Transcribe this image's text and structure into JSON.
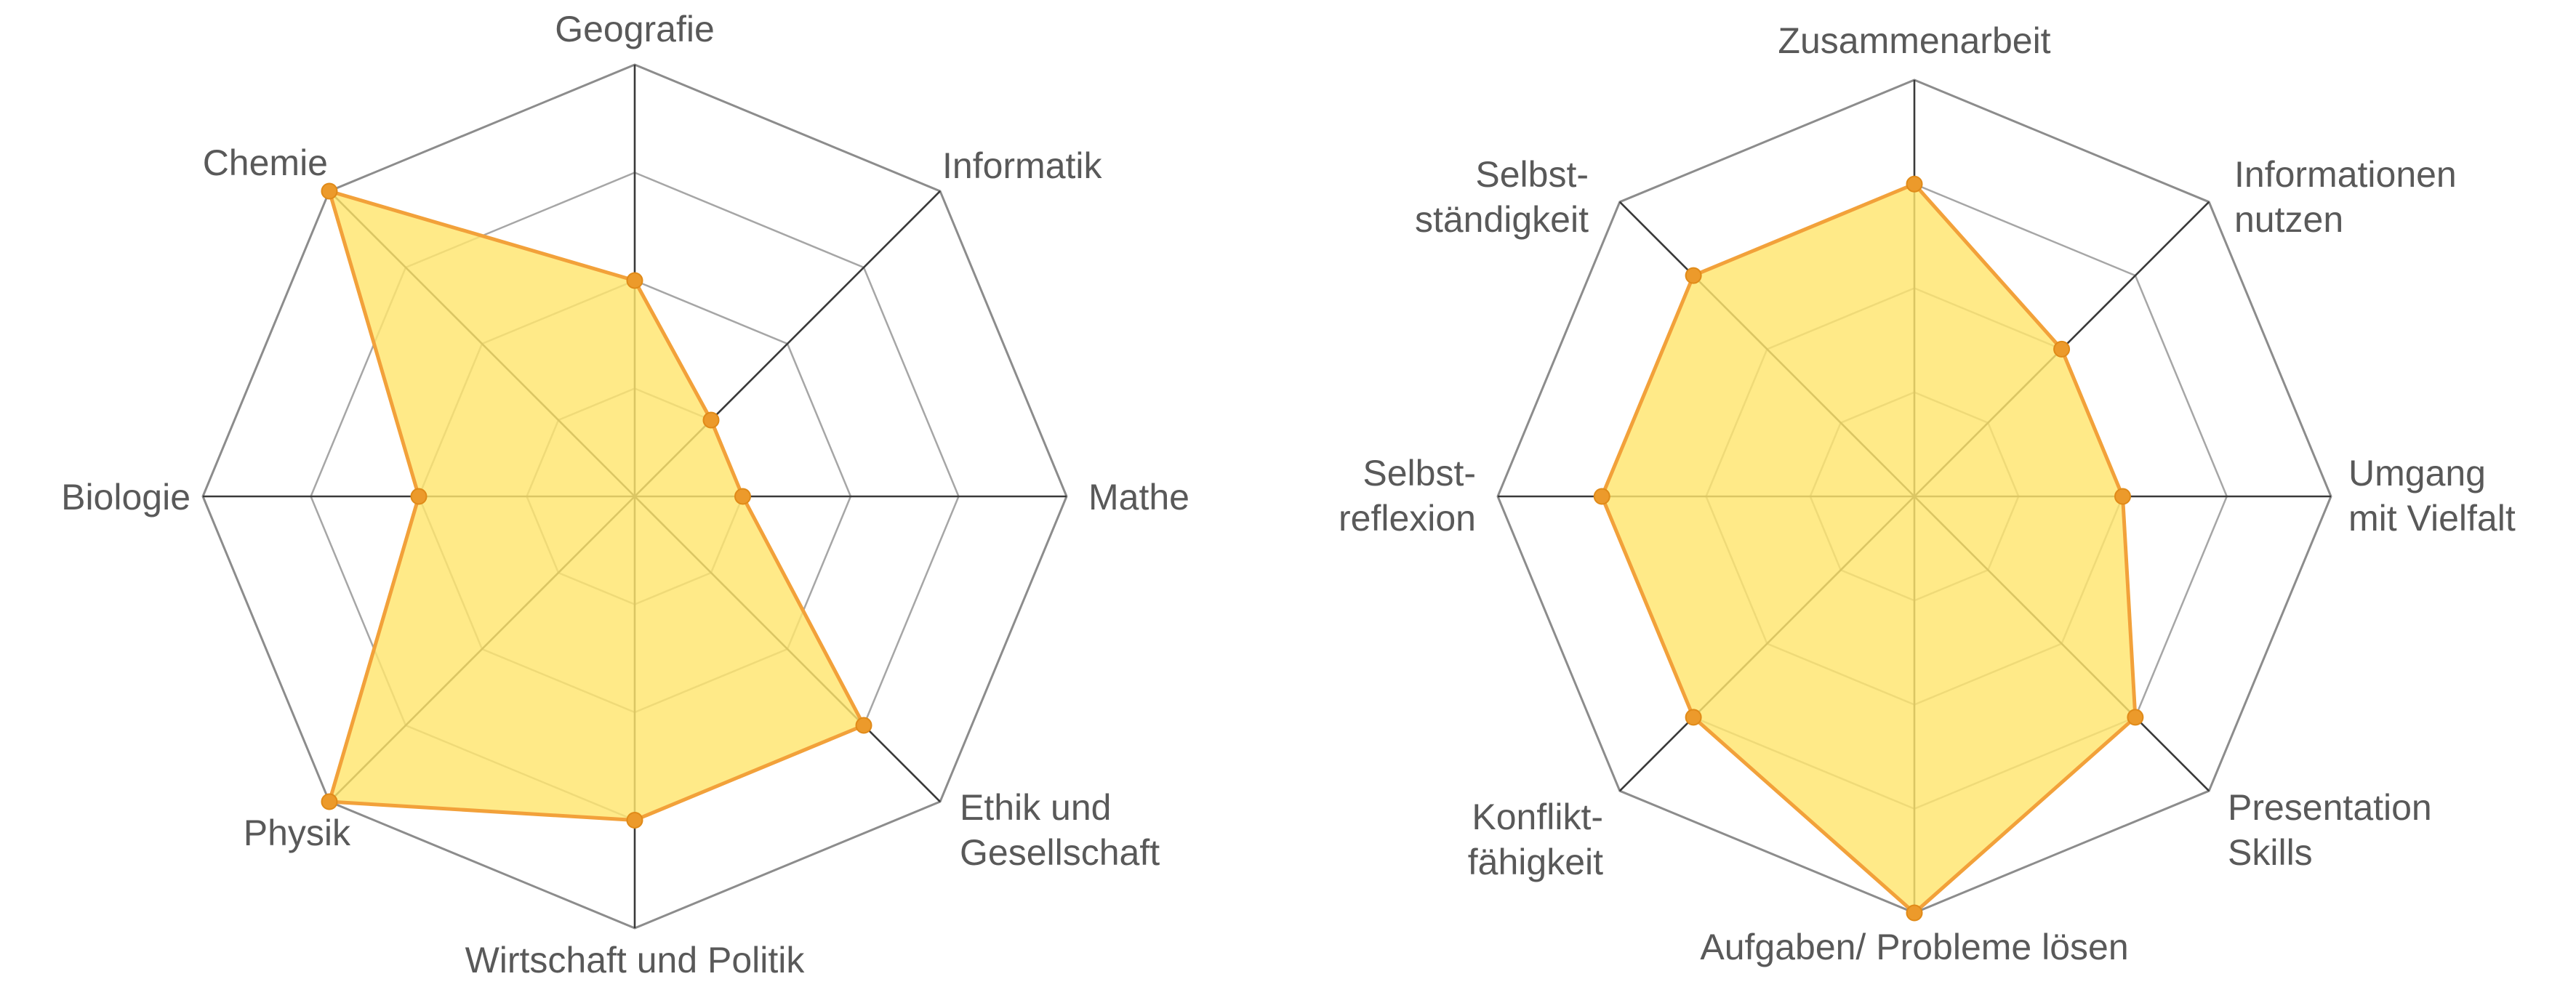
{
  "chart_data": [
    {
      "type": "radar",
      "categories": [
        [
          "Geografie"
        ],
        [
          "Informatik"
        ],
        [
          "Mathe"
        ],
        [
          "Ethik und",
          "Gesellschaft"
        ],
        [
          "Wirtschaft und Politik"
        ],
        [
          "Physik"
        ],
        [
          "Biologie"
        ],
        [
          "Chemie"
        ]
      ],
      "values": [
        2,
        1,
        1,
        3,
        3,
        4,
        2,
        4
      ],
      "rlim": [
        0,
        4
      ],
      "rings": 4,
      "colors": {
        "fill": "#ffe56e",
        "line": "#f2a13a",
        "marker": "#ec9a2b"
      }
    },
    {
      "type": "radar",
      "categories": [
        [
          "Zusammenarbeit"
        ],
        [
          "Informationen",
          "nutzen"
        ],
        [
          "Umgang",
          "mit Vielfalt"
        ],
        [
          "Presentation",
          "Skills"
        ],
        [
          "Aufgaben/ Probleme lösen"
        ],
        [
          "Konflikt-",
          "fähigkeit"
        ],
        [
          "Selbst-",
          "reflexion"
        ],
        [
          "Selbst-",
          "ständigkeit"
        ]
      ],
      "values": [
        3,
        2,
        2,
        3,
        4,
        3,
        3,
        3
      ],
      "rlim": [
        0,
        4
      ],
      "rings": 4,
      "colors": {
        "fill": "#ffe56e",
        "line": "#f2a13a",
        "marker": "#ec9a2b"
      }
    }
  ]
}
